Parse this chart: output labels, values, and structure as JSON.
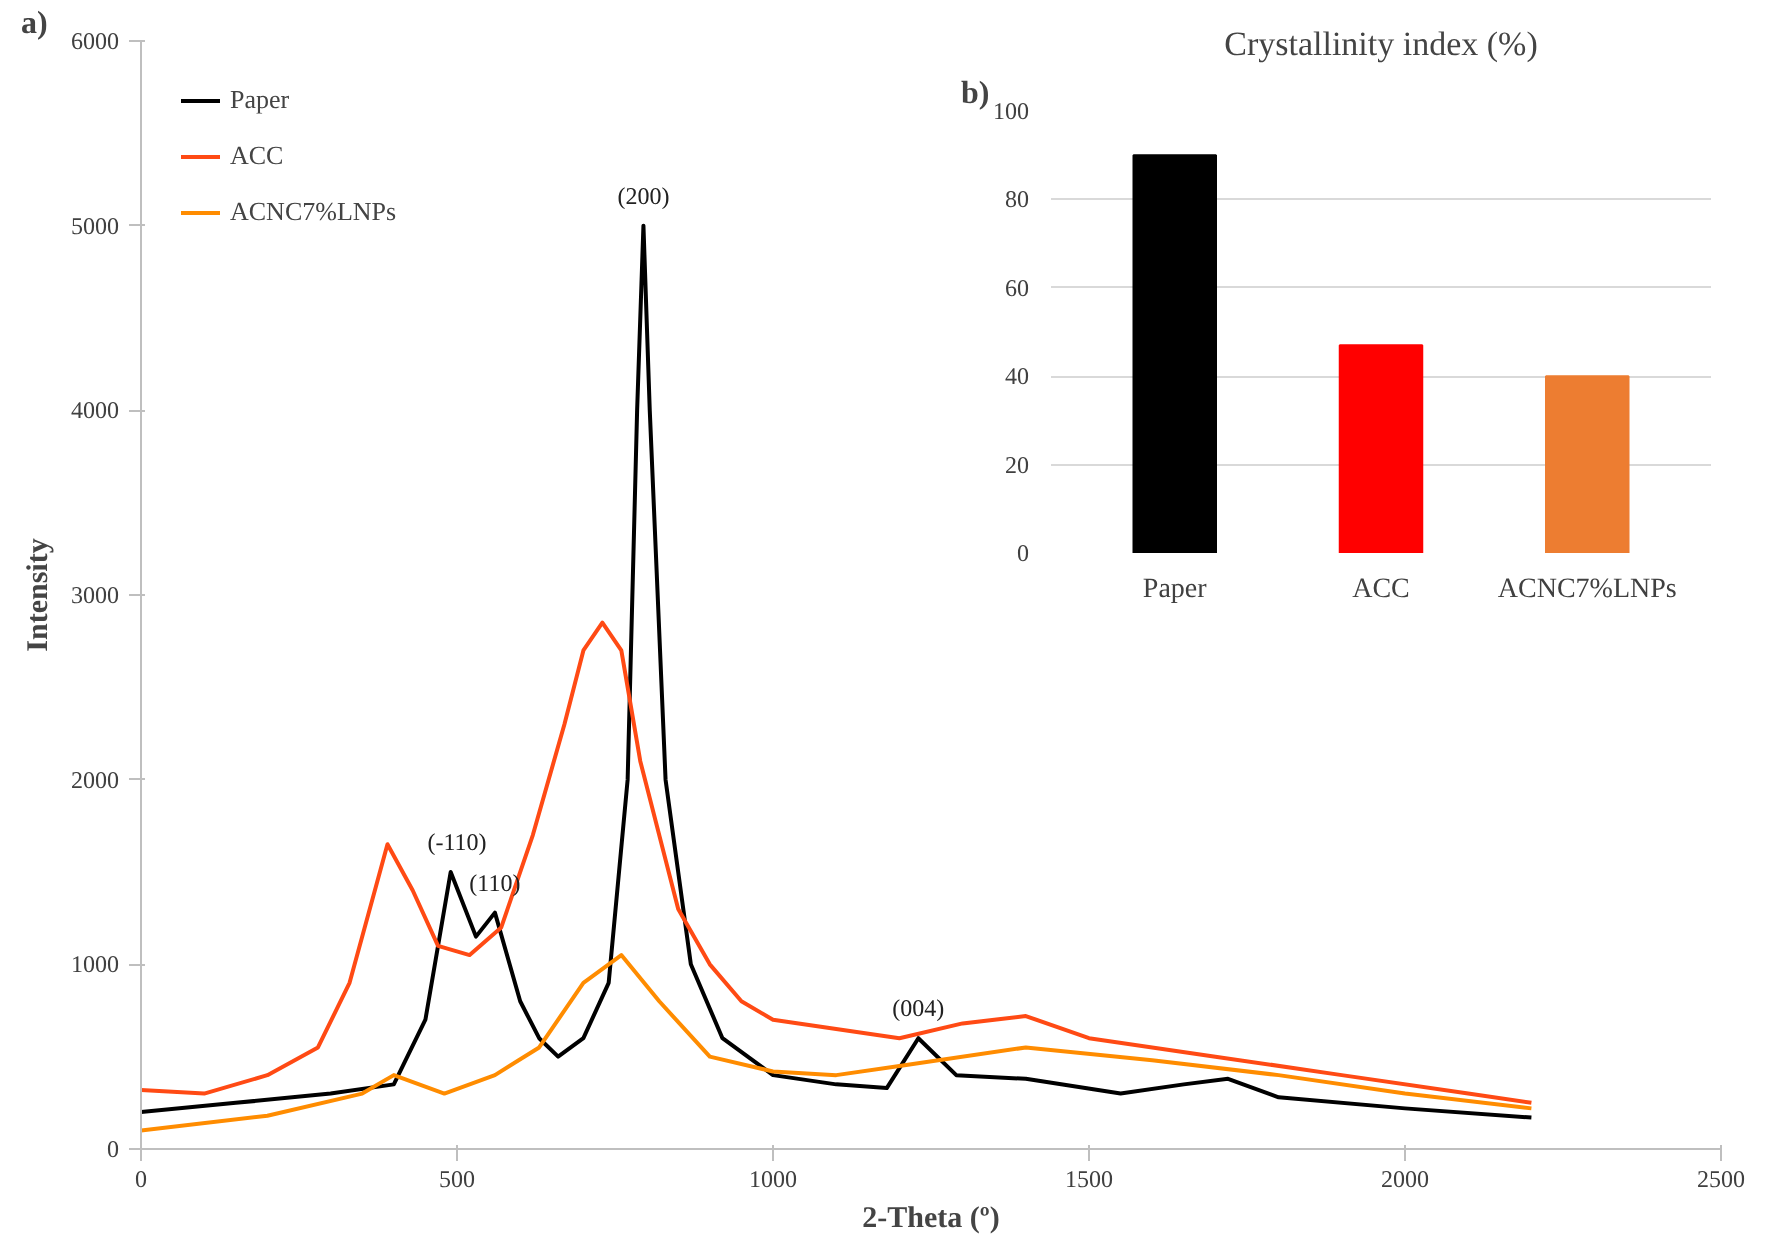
{
  "chart_data": [
    {
      "type": "line",
      "xlabel": "2-Theta (º)",
      "ylabel": "Intensity",
      "xlim": [
        0,
        2500
      ],
      "ylim": [
        0,
        6000
      ],
      "xticks": [
        0,
        500,
        1000,
        1500,
        2000,
        2500
      ],
      "yticks": [
        0,
        1000,
        2000,
        3000,
        4000,
        5000,
        6000
      ],
      "grid": false,
      "legend": "top left",
      "marker": "none",
      "line_style": "solid",
      "series": [
        {
          "name": "Paper",
          "color": "#000000",
          "x": [
            0,
            150,
            300,
            400,
            450,
            490,
            530,
            560,
            600,
            630,
            660,
            700,
            740,
            770,
            785,
            795,
            805,
            830,
            870,
            920,
            1000,
            1100,
            1180,
            1230,
            1290,
            1400,
            1550,
            1650,
            1720,
            1800,
            2000,
            2200
          ],
          "values": [
            200,
            250,
            300,
            350,
            700,
            1500,
            1150,
            1280,
            800,
            600,
            500,
            600,
            900,
            2000,
            4000,
            5000,
            4000,
            2000,
            1000,
            600,
            400,
            350,
            330,
            600,
            400,
            380,
            300,
            350,
            380,
            280,
            220,
            170
          ]
        },
        {
          "name": "ACC",
          "color": "#ff4a14",
          "x": [
            0,
            100,
            200,
            280,
            330,
            370,
            390,
            430,
            470,
            520,
            570,
            620,
            670,
            700,
            730,
            760,
            790,
            850,
            900,
            950,
            1000,
            1100,
            1200,
            1300,
            1400,
            1500,
            1700,
            1900,
            2100,
            2200
          ],
          "values": [
            320,
            300,
            400,
            550,
            900,
            1400,
            1650,
            1400,
            1100,
            1050,
            1200,
            1700,
            2300,
            2700,
            2850,
            2700,
            2100,
            1300,
            1000,
            800,
            700,
            650,
            600,
            680,
            720,
            600,
            500,
            400,
            300,
            250
          ]
        },
        {
          "name": "ACNC7%LNPs",
          "color": "#ff8c00",
          "x": [
            0,
            200,
            350,
            400,
            480,
            560,
            630,
            700,
            760,
            820,
            900,
            1000,
            1100,
            1200,
            1400,
            1600,
            1800,
            2000,
            2200
          ],
          "values": [
            100,
            180,
            300,
            400,
            300,
            400,
            550,
            900,
            1050,
            800,
            500,
            420,
            400,
            450,
            550,
            480,
            400,
            300,
            220
          ]
        }
      ],
      "annotations": [
        "a)",
        {
          "text": "(-110)",
          "x": 500,
          "y": 1500
        },
        {
          "text": "(110)",
          "x": 560,
          "y": 1280
        },
        {
          "text": "(200)",
          "x": 795,
          "y": 5000
        },
        {
          "text": "(004)",
          "x": 1230,
          "y": 600
        }
      ]
    },
    {
      "type": "bar",
      "title": "Crystallinity index (%)",
      "categories": [
        "Paper",
        "ACC",
        "ACNC7%LNPs"
      ],
      "values": [
        90,
        47,
        40
      ],
      "colors": [
        "#000000",
        "#ff0000",
        "#ed7d31"
      ],
      "ylim": [
        0,
        100
      ],
      "yticks": [
        0,
        20,
        40,
        60,
        80,
        100
      ],
      "grid": "y",
      "legend": false,
      "annotations": [
        "b)"
      ]
    }
  ]
}
